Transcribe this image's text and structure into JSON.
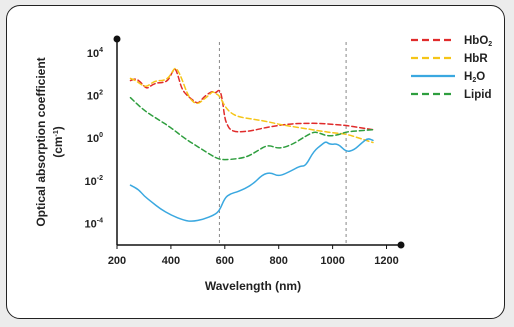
{
  "chart_data": {
    "type": "line",
    "xlabel": "Wavelength (nm)",
    "ylabel": "Optical absorption coefficient",
    "ylabel_unit": "(cm",
    "ylabel_unit_sup": "-1",
    "ylabel_unit_end": ")",
    "xlim": [
      200,
      1250
    ],
    "ylim_log10": [
      -5,
      4.6
    ],
    "y_scale": "log",
    "x_ticks": [
      "200",
      "400",
      "600",
      "800",
      "1000",
      "1200"
    ],
    "x_tick_values": [
      200,
      400,
      600,
      800,
      1000,
      1200
    ],
    "y_tick_base": "10",
    "y_ticks": [
      "4",
      "2",
      "0",
      "-2",
      "-4"
    ],
    "y_tick_values": [
      4,
      2,
      0,
      -2,
      -4
    ],
    "reference_lines_nm": [
      580,
      1050
    ],
    "legend_position": "top-right",
    "series": [
      {
        "name": "HbO",
        "name_sub": "2",
        "color": "#e02b2b",
        "style": "dashed",
        "x": [
          250,
          270,
          290,
          310,
          330,
          350,
          370,
          390,
          405,
          415,
          425,
          440,
          460,
          480,
          500,
          520,
          540,
          555,
          565,
          580,
          590,
          600,
          610,
          620,
          640,
          660,
          700,
          750,
          800,
          850,
          900,
          950,
          1000,
          1050,
          1100,
          1150
        ],
        "y": [
          2.7,
          2.8,
          2.6,
          2.3,
          2.5,
          2.6,
          2.6,
          2.7,
          3.1,
          3.3,
          3.0,
          2.3,
          2.0,
          1.8,
          1.6,
          1.9,
          2.1,
          2.2,
          2.1,
          2.3,
          1.9,
          0.9,
          0.6,
          0.4,
          0.3,
          0.3,
          0.35,
          0.5,
          0.6,
          0.68,
          0.7,
          0.7,
          0.65,
          0.6,
          0.5,
          0.4
        ]
      },
      {
        "name": "HbR",
        "name_sub": "",
        "color": "#f5c518",
        "style": "dashed",
        "x": [
          250,
          270,
          290,
          310,
          330,
          350,
          370,
          390,
          405,
          415,
          425,
          440,
          460,
          480,
          500,
          520,
          540,
          555,
          565,
          580,
          600,
          620,
          650,
          700,
          750,
          800,
          850,
          900,
          950,
          1000,
          1050,
          1100,
          1150
        ],
        "y": [
          2.8,
          2.7,
          2.5,
          2.4,
          2.6,
          2.7,
          2.7,
          2.8,
          3.1,
          3.3,
          3.2,
          2.8,
          2.1,
          1.7,
          1.6,
          1.8,
          2.0,
          2.2,
          2.1,
          2.0,
          1.5,
          1.2,
          1.0,
          0.9,
          0.8,
          0.65,
          0.55,
          0.45,
          0.35,
          0.25,
          0.2,
          0.0,
          -0.2
        ]
      },
      {
        "name": "H",
        "name_sub": "2",
        "name_end": "O",
        "color": "#3aa8e0",
        "style": "solid",
        "x": [
          250,
          280,
          300,
          330,
          360,
          400,
          450,
          480,
          520,
          560,
          580,
          600,
          620,
          650,
          700,
          740,
          770,
          800,
          850,
          880,
          900,
          930,
          960,
          975,
          990,
          1020,
          1050,
          1080,
          1110,
          1130,
          1150
        ],
        "y": [
          -2.2,
          -2.4,
          -2.7,
          -3.0,
          -3.3,
          -3.6,
          -3.85,
          -3.9,
          -3.8,
          -3.6,
          -3.4,
          -2.8,
          -2.6,
          -2.5,
          -2.2,
          -1.7,
          -1.6,
          -1.8,
          -1.5,
          -1.3,
          -1.3,
          -0.6,
          -0.3,
          -0.15,
          -0.3,
          -0.25,
          -0.65,
          -0.55,
          -0.2,
          0.0,
          -0.1
        ]
      },
      {
        "name": "Lipid",
        "name_sub": "",
        "color": "#2e9e3e",
        "style": "dashed",
        "x": [
          250,
          300,
          350,
          400,
          450,
          500,
          550,
          580,
          620,
          680,
          720,
          760,
          800,
          850,
          900,
          930,
          950,
          980,
          1020,
          1050,
          1100,
          1150
        ],
        "y": [
          1.9,
          1.3,
          0.9,
          0.5,
          0.0,
          -0.4,
          -0.8,
          -1.0,
          -1.0,
          -0.9,
          -0.6,
          -0.3,
          -0.5,
          -0.3,
          0.1,
          0.3,
          0.25,
          0.1,
          0.15,
          0.3,
          0.35,
          0.4
        ]
      }
    ]
  }
}
